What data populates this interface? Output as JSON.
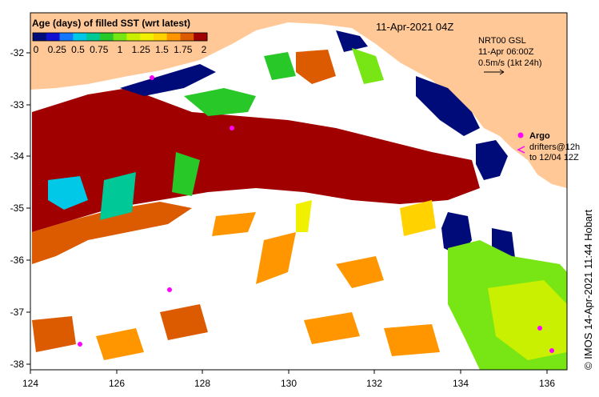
{
  "title": "11-Apr-2021 04Z",
  "legend": {
    "title": "Age (days) of filled SST (wrt latest)",
    "tick_labels": [
      "0",
      "0.25",
      "0.5",
      "0.75",
      "1",
      "1.25",
      "1.5",
      "1.75",
      "2"
    ],
    "colors": [
      "#000b7a",
      "#1010d0",
      "#1478ff",
      "#00c8e6",
      "#00c896",
      "#28c828",
      "#78e614",
      "#c8f000",
      "#f0f000",
      "#ffd200",
      "#ff9600",
      "#dc5a00",
      "#a00000"
    ]
  },
  "info": {
    "line1": "NRT00 GSL",
    "line2": "11-Apr 06:00Z",
    "line3": "0.5m/s (1kt 24h)"
  },
  "argo": {
    "label": "Argo",
    "drifters_line1": "drifters@12h",
    "drifters_line2": "to 12/04 12Z",
    "marker_color": "#ff00ff"
  },
  "credit": "© IMOS 14-Apr-2021 11:44 Hobart",
  "axes": {
    "x_ticks": [
      "124",
      "126",
      "128",
      "130",
      "132",
      "134",
      "136"
    ],
    "y_ticks": [
      "-32",
      "-33",
      "-34",
      "-35",
      "-36",
      "-37",
      "-38"
    ]
  },
  "colors": {
    "land": "#ffc896",
    "no_data": "#ffffff"
  }
}
